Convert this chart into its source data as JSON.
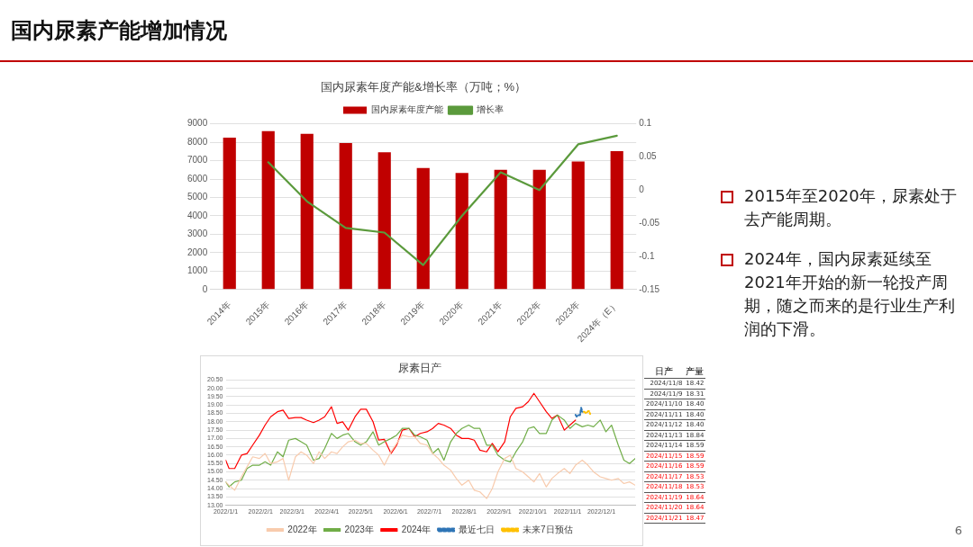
{
  "chart_data": [
    {
      "type": "other",
      "title": "国内尿素产能增加情况",
      "annotations": [
        "2015年至2020年，尿素处于去产能周期。",
        "2024年，国内尿素延续至2021年开始的新一轮投产周期，随之而来的是行业生产利润的下滑。",
        "6"
      ]
    },
    {
      "type": "bar",
      "title": "国内尿素年度产能&增长率（万吨；%）",
      "categories": [
        "2014年",
        "2015年",
        "2016年",
        "2017年",
        "2018年",
        "2019年",
        "2020年",
        "2021年",
        "2022年",
        "2023年",
        "2024年（E）"
      ],
      "series": [
        {
          "name": "国内尿素年度产能",
          "type": "bar",
          "color": "#c00000",
          "values": [
            8250,
            8600,
            8450,
            7950,
            7450,
            6600,
            6330,
            6500,
            6500,
            6950,
            7520
          ]
        },
        {
          "name": "增长率",
          "type": "line",
          "axis": "y2",
          "color": "#5b9a3c",
          "values": [
            null,
            0.042,
            -0.017,
            -0.057,
            -0.064,
            -0.113,
            -0.039,
            0.027,
            0.0,
            0.069,
            0.082
          ]
        }
      ],
      "ylim": [
        0,
        9000
      ],
      "yticks": [
        0,
        1000,
        2000,
        3000,
        4000,
        5000,
        6000,
        7000,
        8000,
        9000
      ],
      "y2lim": [
        -0.15,
        0.1
      ],
      "y2ticks": [
        -0.15,
        -0.1,
        -0.05,
        0,
        0.05,
        0.1
      ],
      "grid": "y",
      "legend": "top"
    },
    {
      "type": "line",
      "title": "尿素日产",
      "x": [
        "2022-01-01",
        "2022-01-04",
        "2022-01-09",
        "2022-01-15",
        "2022-01-20",
        "2022-01-25",
        "2022-01-31",
        "2022-02-05",
        "2022-02-10",
        "2022-02-16",
        "2022-02-21",
        "2022-02-26",
        "2022-03-04",
        "2022-03-09",
        "2022-03-14",
        "2022-03-20",
        "2022-03-25",
        "2022-03-30",
        "2022-04-05",
        "2022-04-10",
        "2022-04-15",
        "2022-04-20",
        "2022-04-26",
        "2022-05-01",
        "2022-05-06",
        "2022-05-12",
        "2022-05-17",
        "2022-05-22",
        "2022-05-28",
        "2022-06-02",
        "2022-06-07",
        "2022-06-13",
        "2022-06-18",
        "2022-06-23",
        "2022-06-29",
        "2022-07-04",
        "2022-07-09",
        "2022-07-14",
        "2022-07-20",
        "2022-07-25",
        "2022-07-30",
        "2022-08-05",
        "2022-08-10",
        "2022-08-15",
        "2022-08-21",
        "2022-08-26",
        "2022-08-31",
        "2022-09-06",
        "2022-09-11",
        "2022-09-16",
        "2022-09-22",
        "2022-09-27",
        "2022-10-02",
        "2022-10-07",
        "2022-10-13",
        "2022-10-18",
        "2022-10-23",
        "2022-10-29",
        "2022-11-03",
        "2022-11-08",
        "2022-11-14",
        "2022-11-19",
        "2022-11-24",
        "2022-11-30",
        "2022-12-05",
        "2022-12-10",
        "2022-12-16",
        "2022-12-21",
        "2022-12-26",
        "2022-12-31"
      ],
      "series": [
        {
          "name": "2022年",
          "color": "#f8cbad",
          "values": [
            14.4,
            14.2,
            13.9,
            14.7,
            15.3,
            15.9,
            15.8,
            16.1,
            15.5,
            15.6,
            15.8,
            14.5,
            15.9,
            16.2,
            16.0,
            15.5,
            16.2,
            15.8,
            16.2,
            16.1,
            16.5,
            16.8,
            16.9,
            16.7,
            16.7,
            16.3,
            16.0,
            15.4,
            16.2,
            16.7,
            17.2,
            17.1,
            17.1,
            16.7,
            16.6,
            16.1,
            15.8,
            15.4,
            15.1,
            14.6,
            14.2,
            14.5,
            13.9,
            13.8,
            13.4,
            14.0,
            15.0,
            15.8,
            16.0,
            15.2,
            15.0,
            14.7,
            14.4,
            14.9,
            14.1,
            14.6,
            14.9,
            15.2,
            14.9,
            15.4,
            15.7,
            15.4,
            15.0,
            14.7,
            14.6,
            14.5,
            14.6,
            14.3,
            14.4,
            14.2
          ]
        },
        {
          "name": "2023年",
          "color": "#70ad47",
          "values": [
            14.4,
            14.1,
            14.4,
            14.5,
            15.2,
            15.4,
            15.4,
            15.6,
            15.4,
            16.2,
            15.9,
            16.9,
            17.0,
            16.8,
            16.6,
            15.7,
            15.8,
            16.4,
            17.3,
            17.0,
            17.2,
            17.3,
            16.8,
            16.6,
            16.8,
            17.4,
            16.6,
            16.8,
            17.0,
            17.2,
            17.6,
            17.6,
            17.2,
            17.1,
            16.9,
            16.1,
            16.4,
            15.7,
            16.8,
            17.3,
            17.6,
            17.8,
            17.6,
            17.6,
            16.6,
            16.6,
            16.0,
            15.7,
            15.6,
            16.2,
            16.8,
            17.6,
            17.7,
            17.3,
            17.3,
            18.1,
            18.4,
            18.1,
            17.6,
            17.9,
            17.7,
            17.8,
            17.7,
            18.1,
            17.4,
            17.8,
            16.6,
            15.7,
            15.5,
            15.8
          ]
        },
        {
          "name": "2024年",
          "color": "#ff0000",
          "values": [
            15.7,
            15.2,
            15.2,
            16.0,
            16.1,
            16.6,
            17.2,
            17.8,
            18.3,
            18.6,
            18.7,
            18.2,
            18.25,
            18.25,
            18.1,
            17.95,
            18.1,
            18.3,
            18.9,
            17.9,
            18.0,
            17.5,
            18.3,
            18.75,
            18.75,
            18.0,
            16.9,
            16.95,
            16.1,
            16.6,
            17.5,
            17.6,
            17.1,
            17.3,
            17.4,
            17.6,
            17.9,
            17.8,
            17.6,
            17.2,
            17.0,
            17.0,
            16.9,
            16.3,
            16.2,
            16.7,
            16.2,
            16.8,
            18.3,
            18.8,
            18.9,
            19.2,
            19.7,
            19.2,
            18.6,
            18.2,
            18.4,
            17.5,
            17.8,
            18.1,
            null,
            null,
            null,
            null,
            null,
            null,
            null,
            null,
            null,
            null
          ]
        },
        {
          "name": "最近七日",
          "color": "#2e75b6",
          "line_style": "dashed",
          "x": [
            "2022-11-08",
            "2022-11-09",
            "2022-11-10",
            "2022-11-11",
            "2022-11-12",
            "2022-11-13",
            "2022-11-14"
          ],
          "values": [
            18.42,
            18.31,
            18.4,
            18.4,
            18.4,
            18.84,
            18.59
          ]
        },
        {
          "name": "未来7日预估",
          "color": "#ffc000",
          "line_style": "dashed",
          "x": [
            "2022-11-15",
            "2022-11-16",
            "2022-11-17",
            "2022-11-18",
            "2022-11-19",
            "2022-11-20",
            "2022-11-21"
          ],
          "values": [
            18.59,
            18.59,
            18.53,
            18.53,
            18.64,
            18.64,
            18.47
          ]
        }
      ],
      "xlim": [
        "2022-01-01",
        "2022-12-31"
      ],
      "xticks": [
        {
          "value": "2022-01-01",
          "label": "2022/1/1"
        },
        {
          "value": "2022-02-01",
          "label": "2022/2/1"
        },
        {
          "value": "2022-03-01",
          "label": "2022/3/1"
        },
        {
          "value": "2022-04-01",
          "label": "2022/4/1"
        },
        {
          "value": "2022-05-01",
          "label": "2022/5/1"
        },
        {
          "value": "2022-06-01",
          "label": "2022/6/1"
        },
        {
          "value": "2022-07-01",
          "label": "2022/7/1"
        },
        {
          "value": "2022-08-01",
          "label": "2022/8/1"
        },
        {
          "value": "2022-09-01",
          "label": "2022/9/1"
        },
        {
          "value": "2022-10-01",
          "label": "2022/10/1"
        },
        {
          "value": "2022-11-01",
          "label": "2022/11/1"
        },
        {
          "value": "2022-12-01",
          "label": "2022/12/1"
        }
      ],
      "ylim": [
        13,
        20.5
      ],
      "yticks": [
        {
          "value": 13,
          "label": "13.00"
        },
        {
          "value": 13.5,
          "label": "13.50"
        },
        {
          "value": 14,
          "label": "14.00"
        },
        {
          "value": 14.5,
          "label": "14.50"
        },
        {
          "value": 15,
          "label": "15.00"
        },
        {
          "value": 15.5,
          "label": "15.50"
        },
        {
          "value": 16,
          "label": "16.00"
        },
        {
          "value": 16.5,
          "label": "16.50"
        },
        {
          "value": 17,
          "label": "17.00"
        },
        {
          "value": 17.5,
          "label": "17.50"
        },
        {
          "value": 18,
          "label": "18.00"
        },
        {
          "value": 18.5,
          "label": "18.50"
        },
        {
          "value": 19,
          "label": "19.00"
        },
        {
          "value": 19.5,
          "label": "19.50"
        },
        {
          "value": 20,
          "label": "20.00"
        },
        {
          "value": 20.5,
          "label": "20.50"
        }
      ],
      "grid": "y",
      "legend": "bottom",
      "annotations": [
        "日产",
        "产量",
        "2024/11/8",
        "18.42",
        "2024/11/9",
        "18.31",
        "2024/11/10",
        "18.40",
        "2024/11/11",
        "18.40",
        "2024/11/12",
        "18.40",
        "2024/11/13",
        "18.84",
        "2024/11/14",
        "18.59",
        "2024/11/15",
        "18.59",
        "2024/11/16",
        "18.59",
        "2024/11/17",
        "18.53",
        "2024/11/18",
        "18.53",
        "2024/11/19",
        "18.64",
        "2024/11/20",
        "18.64",
        "2024/11/21",
        "18.47"
      ]
    }
  ]
}
